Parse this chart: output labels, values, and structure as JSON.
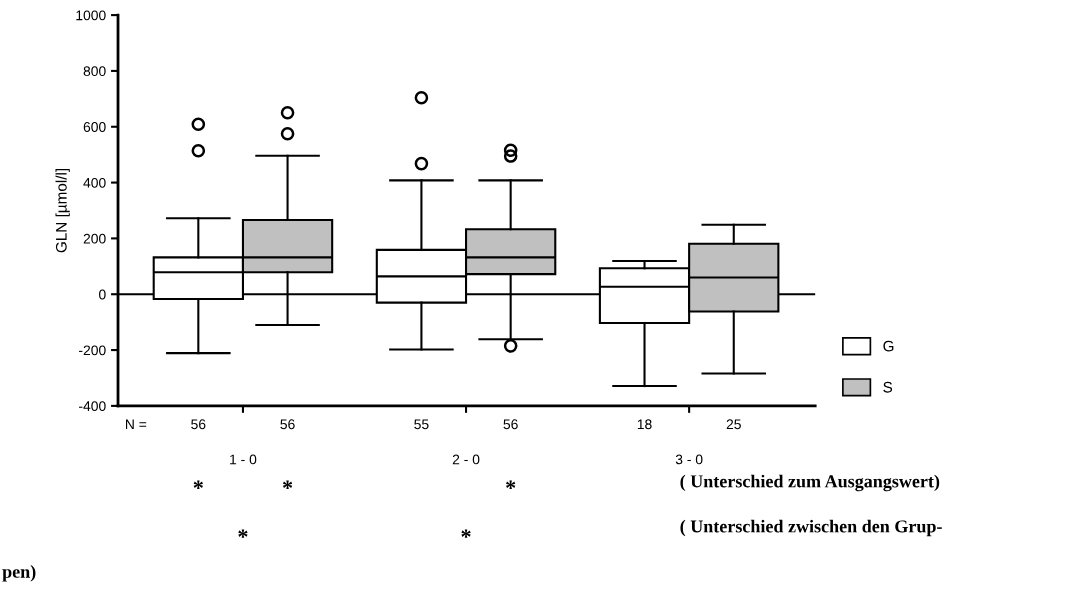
{
  "chart_data": {
    "type": "box",
    "ylabel": "GLN [µmol/l]",
    "categories": [
      "1 - 0",
      "2 - 0",
      "3 - 0"
    ],
    "series": [
      {
        "name": "G",
        "color": "#ffffff",
        "boxes": [
          {
            "low": -211,
            "q1": -17,
            "median": 79,
            "q3": 132,
            "high": 272,
            "outliers": [
              514,
              609
            ]
          },
          {
            "low": -198,
            "q1": -30,
            "median": 64,
            "q3": 159,
            "high": 408,
            "outliers": [
              468,
              704
            ]
          },
          {
            "low": -329,
            "q1": -103,
            "median": 27,
            "q3": 93,
            "high": 119
          }
        ]
      },
      {
        "name": "S",
        "color": "#c0c0c0",
        "boxes": [
          {
            "low": -110,
            "q1": 79,
            "median": 132,
            "q3": 266,
            "high": 496,
            "outliers": [
              575,
              650
            ]
          },
          {
            "low": -161,
            "q1": 72,
            "median": 132,
            "q3": 233,
            "high": 408,
            "outliers": [
              -185,
              495,
              516
            ]
          },
          {
            "low": -284,
            "q1": -62,
            "median": 60,
            "q3": 181,
            "high": 249
          }
        ]
      }
    ],
    "ylim": [
      -400,
      1000
    ],
    "yticks": [
      -400,
      -200,
      0,
      200,
      400,
      600,
      800,
      1000
    ],
    "ref_lines": [
      {
        "axis": "y",
        "value": 0,
        "color": "#000000"
      }
    ],
    "grid": false,
    "legend": "right",
    "annotations": [
      "N =",
      "56",
      "56",
      "55",
      "56",
      "18",
      "25",
      "*",
      "*",
      "*",
      "*",
      "*",
      "( Unterschied zum Ausgangswert)",
      "( Unterschied zwischen den Grup-\npen)"
    ]
  }
}
